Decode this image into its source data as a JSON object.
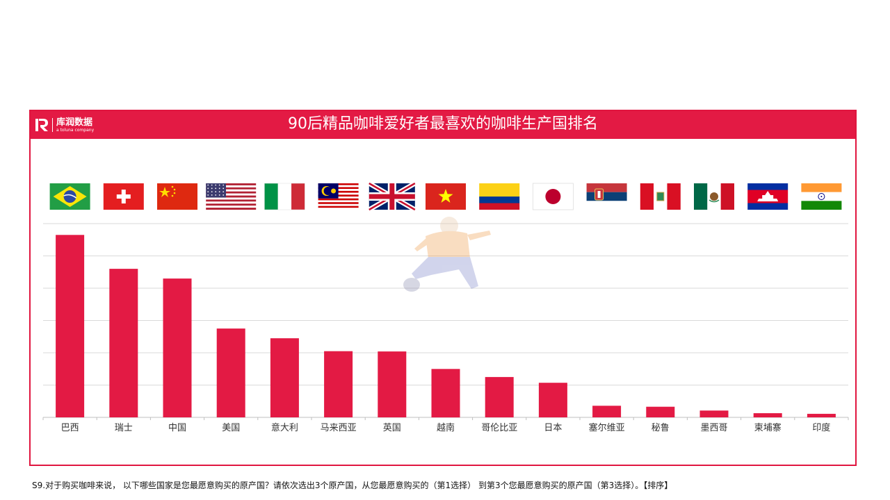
{
  "header": {
    "brand_cn": "库润数据",
    "brand_en": "a toluna company",
    "title": "90后精品咖啡爱好者最喜欢的咖啡生产国排名"
  },
  "footnote": "S9.对于购买咖啡来说， 以下哪些国家是您最愿意购买的原产国？请依次选出3个原产国，从您最愿意购买的（第1选择） 到第3个您最愿意购买的原产国（第3选择）。【排序】",
  "colors": {
    "accent": "#e31a44",
    "bar": "#e31a44",
    "grid": "#d9d9d9",
    "label": "#333333"
  },
  "chart_data": {
    "type": "bar",
    "title": "90后精品咖啡爱好者最喜欢的咖啡生产国排名",
    "categories": [
      "巴西",
      "瑞士",
      "中国",
      "美国",
      "意大利",
      "马来西亚",
      "英国",
      "越南",
      "哥伦比亚",
      "日本",
      "塞尔维亚",
      "秘鲁",
      "墨西哥",
      "柬埔寨",
      "印度"
    ],
    "values": [
      56.5,
      46,
      43,
      27.5,
      24.5,
      20.5,
      20.4,
      15,
      12.5,
      10.7,
      3.6,
      3.3,
      2.1,
      1.3,
      1.1
    ],
    "ylim": [
      0,
      60
    ],
    "grid": true,
    "legend": false,
    "flags": [
      "brazil-flag",
      "switzerland-flag",
      "china-flag",
      "usa-flag",
      "italy-flag",
      "malaysia-flag",
      "uk-flag",
      "vietnam-flag",
      "colombia-flag",
      "japan-flag",
      "serbia-flag",
      "peru-flag",
      "mexico-flag",
      "cambodia-flag",
      "india-flag"
    ]
  }
}
